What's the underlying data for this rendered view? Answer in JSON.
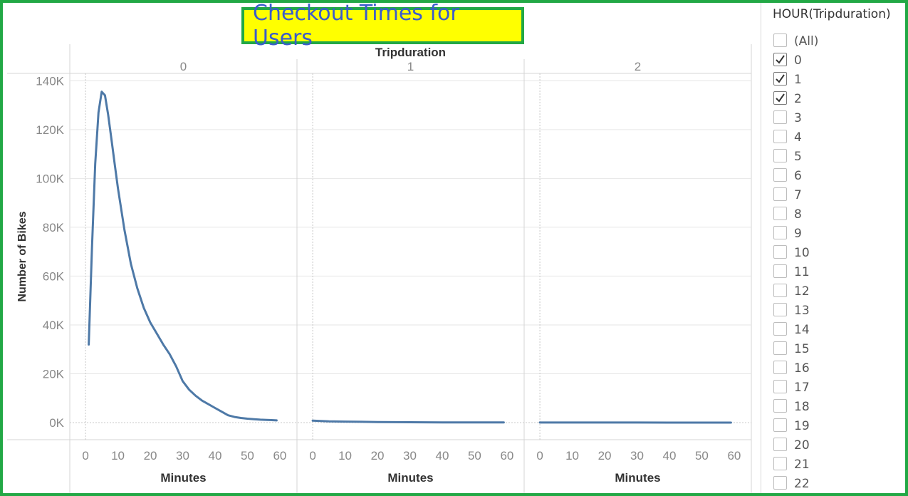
{
  "title": "Checkout Times for Users",
  "filter": {
    "title": "HOUR(Tripduration)",
    "items": [
      {
        "label": "(All)",
        "checked": false
      },
      {
        "label": "0",
        "checked": true
      },
      {
        "label": "1",
        "checked": true
      },
      {
        "label": "2",
        "checked": true
      },
      {
        "label": "3",
        "checked": false
      },
      {
        "label": "4",
        "checked": false
      },
      {
        "label": "5",
        "checked": false
      },
      {
        "label": "6",
        "checked": false
      },
      {
        "label": "7",
        "checked": false
      },
      {
        "label": "8",
        "checked": false
      },
      {
        "label": "9",
        "checked": false
      },
      {
        "label": "10",
        "checked": false
      },
      {
        "label": "11",
        "checked": false
      },
      {
        "label": "12",
        "checked": false
      },
      {
        "label": "13",
        "checked": false
      },
      {
        "label": "14",
        "checked": false
      },
      {
        "label": "15",
        "checked": false
      },
      {
        "label": "16",
        "checked": false
      },
      {
        "label": "17",
        "checked": false
      },
      {
        "label": "18",
        "checked": false
      },
      {
        "label": "19",
        "checked": false
      },
      {
        "label": "20",
        "checked": false
      },
      {
        "label": "21",
        "checked": false
      },
      {
        "label": "22",
        "checked": false
      }
    ]
  },
  "chart_data": {
    "type": "line",
    "column_header_title": "Tripduration",
    "ylabel": "Number of Bikes",
    "xlabel": "Minutes",
    "ylim": [
      -7000,
      143000
    ],
    "xlim": [
      -2,
      62
    ],
    "y_ticks": [
      0,
      20000,
      40000,
      60000,
      80000,
      100000,
      120000,
      140000
    ],
    "y_tick_labels": [
      "0K",
      "20K",
      "40K",
      "60K",
      "80K",
      "100K",
      "120K",
      "140K"
    ],
    "x_ticks": [
      0,
      10,
      20,
      30,
      40,
      50,
      60
    ],
    "x_tick_labels": [
      "0",
      "10",
      "20",
      "30",
      "40",
      "50",
      "60"
    ],
    "line_color": "#4e79a7",
    "panels": [
      {
        "label": "0",
        "x": [
          1,
          2,
          3,
          4,
          5,
          6,
          7,
          8,
          9,
          10,
          12,
          14,
          16,
          18,
          20,
          22,
          24,
          26,
          28,
          30,
          32,
          34,
          36,
          38,
          40,
          42,
          44,
          46,
          48,
          50,
          52,
          54,
          56,
          58,
          59
        ],
        "y": [
          32000,
          72000,
          106000,
          127000,
          135500,
          134000,
          126000,
          116000,
          106000,
          96000,
          79000,
          65000,
          55000,
          47000,
          41000,
          36500,
          32000,
          28000,
          23000,
          17000,
          13500,
          11000,
          9000,
          7500,
          6000,
          4500,
          3000,
          2300,
          1900,
          1600,
          1400,
          1200,
          1100,
          1000,
          900
        ]
      },
      {
        "label": "1",
        "x": [
          0,
          5,
          10,
          20,
          30,
          40,
          50,
          59
        ],
        "y": [
          800,
          500,
          400,
          250,
          150,
          100,
          80,
          60
        ]
      },
      {
        "label": "2",
        "x": [
          0,
          10,
          20,
          30,
          40,
          50,
          59
        ],
        "y": [
          40,
          30,
          25,
          20,
          18,
          15,
          12
        ]
      }
    ]
  }
}
